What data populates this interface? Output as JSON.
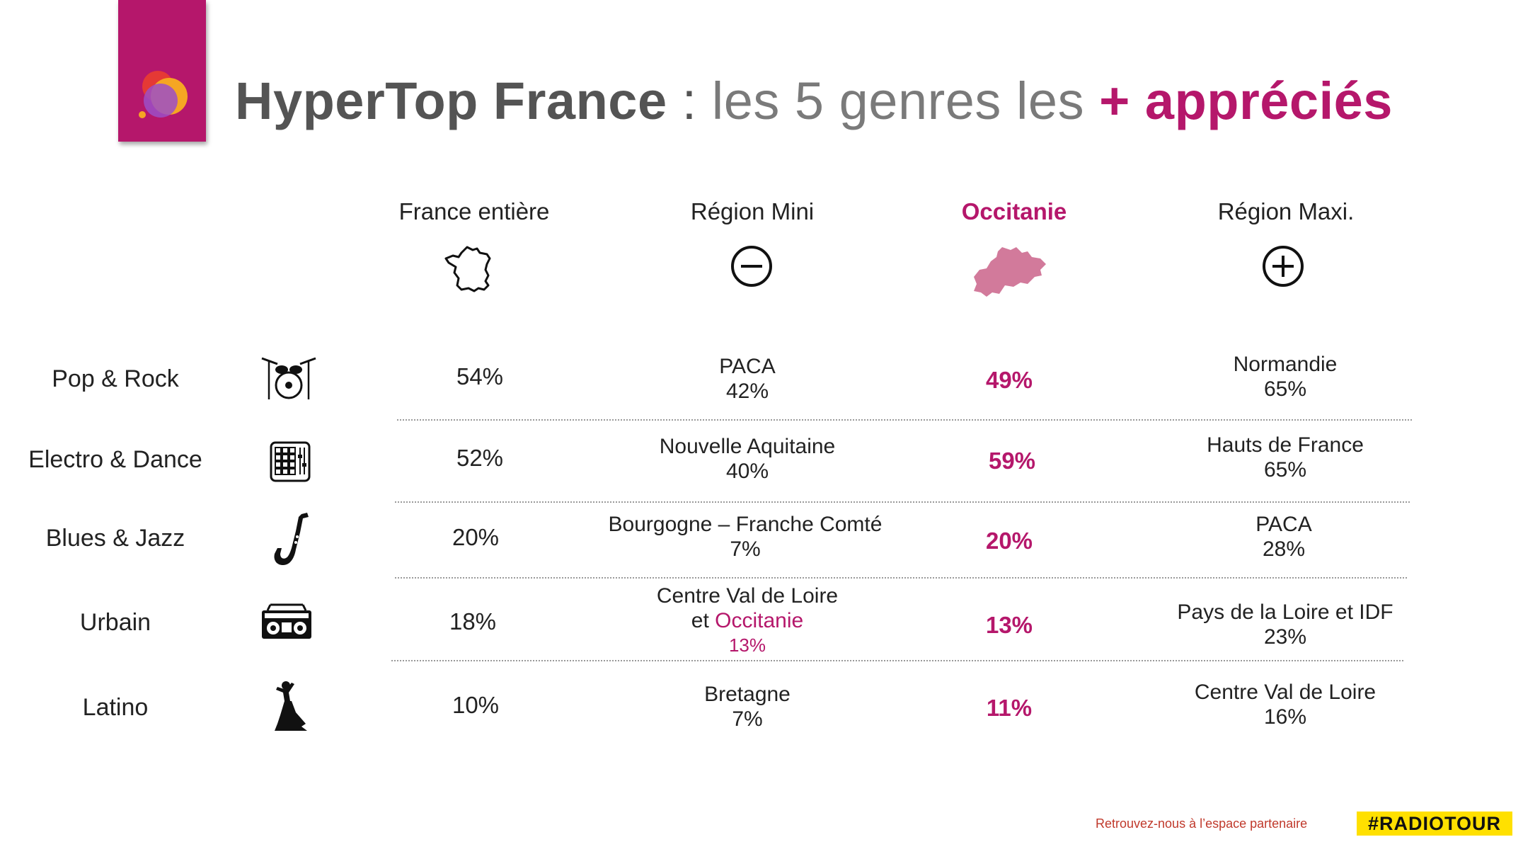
{
  "title": {
    "brand": "HyperTop France",
    "sep": " : ",
    "mid": "les 5 genres les ",
    "accent": "+ appréciés"
  },
  "columns": {
    "france": "France entière",
    "mini": "Région Mini",
    "occitanie": "Occitanie",
    "maxi": "Région Maxi."
  },
  "icons": {
    "france": "france-map-icon",
    "mini": "minus-circle-icon",
    "occitanie": "occitanie-map-icon",
    "maxi": "plus-circle-icon"
  },
  "rows": [
    {
      "genre": "Pop & Rock",
      "icon": "drum-kit-icon",
      "france": "54%",
      "mini_region": "PACA",
      "mini_value": "42%",
      "occitanie": "49%",
      "maxi_region": "Normandie",
      "maxi_value": "65%"
    },
    {
      "genre": "Electro & Dance",
      "icon": "drum-pad-icon",
      "france": "52%",
      "mini_region": "Nouvelle Aquitaine",
      "mini_value": "40%",
      "occitanie": "59%",
      "maxi_region": "Hauts de France",
      "maxi_value": "65%"
    },
    {
      "genre": "Blues & Jazz",
      "icon": "saxophone-icon",
      "france": "20%",
      "mini_region": "Bourgogne – Franche Comté",
      "mini_value": "7%",
      "occitanie": "20%",
      "maxi_region": "PACA",
      "maxi_value": "28%"
    },
    {
      "genre": "Urbain",
      "icon": "boombox-icon",
      "france": "18%",
      "mini_region_line1": "Centre Val de Loire",
      "mini_region_line2_prefix": "et ",
      "mini_region_line2_accent": "Occitanie",
      "mini_value": "13%",
      "occitanie": "13%",
      "maxi_region": "Pays de la Loire et IDF",
      "maxi_value": "23%"
    },
    {
      "genre": "Latino",
      "icon": "flamenco-dancer-icon",
      "france": "10%",
      "mini_region": "Bretagne",
      "mini_value": "7%",
      "occitanie": "11%",
      "maxi_region": "Centre Val de Loire",
      "maxi_value": "16%"
    }
  ],
  "footer": {
    "text": "Retrouvez-nous à l’espace partenaire",
    "tag": "#RADIOTOUR"
  },
  "colors": {
    "accent": "#b5176b",
    "tag": "#ffe000",
    "title_grey": "#545454"
  }
}
